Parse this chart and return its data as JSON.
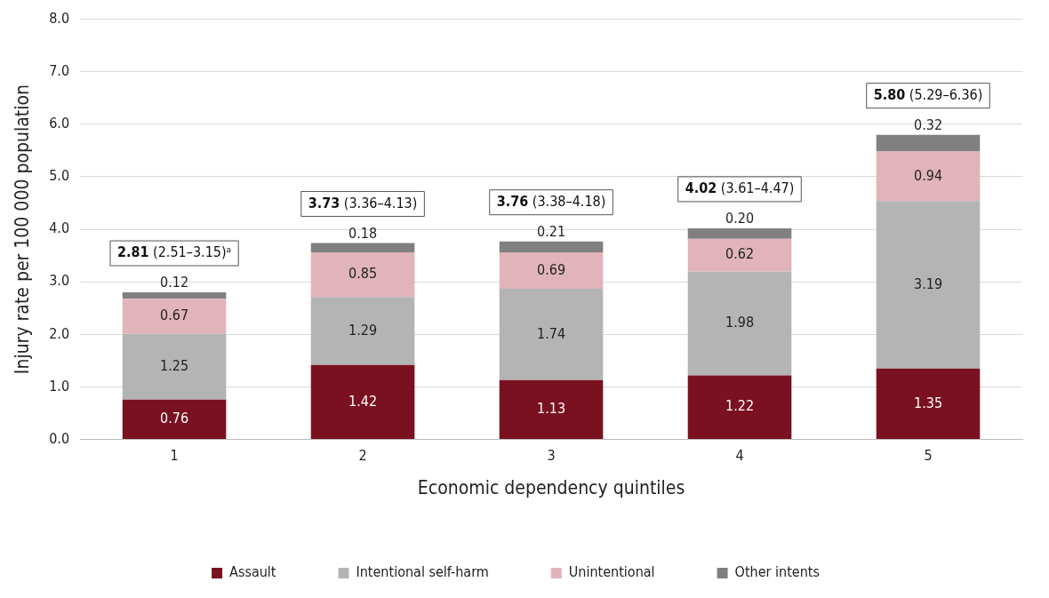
{
  "chart_data": {
    "type": "bar",
    "stacked": true,
    "xlabel": "Economic dependency quintiles",
    "ylabel": "Injury rate per 100 000 population",
    "categories": [
      "1",
      "2",
      "3",
      "4",
      "5"
    ],
    "series": [
      {
        "name": "Assault",
        "color": "#7a1120",
        "values": [
          0.76,
          1.42,
          1.13,
          1.22,
          1.35
        ],
        "value_labels": [
          "0.76",
          "1.42",
          "1.13",
          "1.22",
          "1.35"
        ]
      },
      {
        "name": "Intentional self-harm",
        "color": "#b4b4b4",
        "values": [
          1.25,
          1.29,
          1.74,
          1.98,
          3.19
        ],
        "value_labels": [
          "1.25",
          "1.29",
          "1.74",
          "1.98",
          "3.19"
        ]
      },
      {
        "name": "Unintentional",
        "color": "#e0b4ba",
        "values": [
          0.67,
          0.85,
          0.69,
          0.62,
          0.94
        ],
        "value_labels": [
          "0.67",
          "0.85",
          "0.69",
          "0.62",
          "0.94"
        ]
      },
      {
        "name": "Other intents",
        "color": "#808080",
        "values": [
          0.12,
          0.18,
          0.21,
          0.2,
          0.32
        ],
        "value_labels": [
          "0.12",
          "0.18",
          "0.21",
          "0.20",
          "0.32"
        ]
      }
    ],
    "totals": [
      "2.81 (2.51–3.15)ᵃ",
      "3.73 (3.36–4.13)",
      "3.76 (3.38–4.18)",
      "4.02 (3.61–4.47)",
      "5.80 (5.29–6.36)"
    ],
    "ylim": [
      0,
      8
    ],
    "yticks": [
      {
        "value": 0,
        "label": "0.0"
      },
      {
        "value": 1,
        "label": "1.0"
      },
      {
        "value": 2,
        "label": "2.0"
      },
      {
        "value": 3,
        "label": "3.0"
      },
      {
        "value": 4,
        "label": "4.0"
      },
      {
        "value": 5,
        "label": "5.0"
      },
      {
        "value": 6,
        "label": "6.0"
      },
      {
        "value": 7,
        "label": "7.0"
      },
      {
        "value": 8,
        "label": "8.0"
      }
    ],
    "grid": "y",
    "legend": "bottom"
  }
}
